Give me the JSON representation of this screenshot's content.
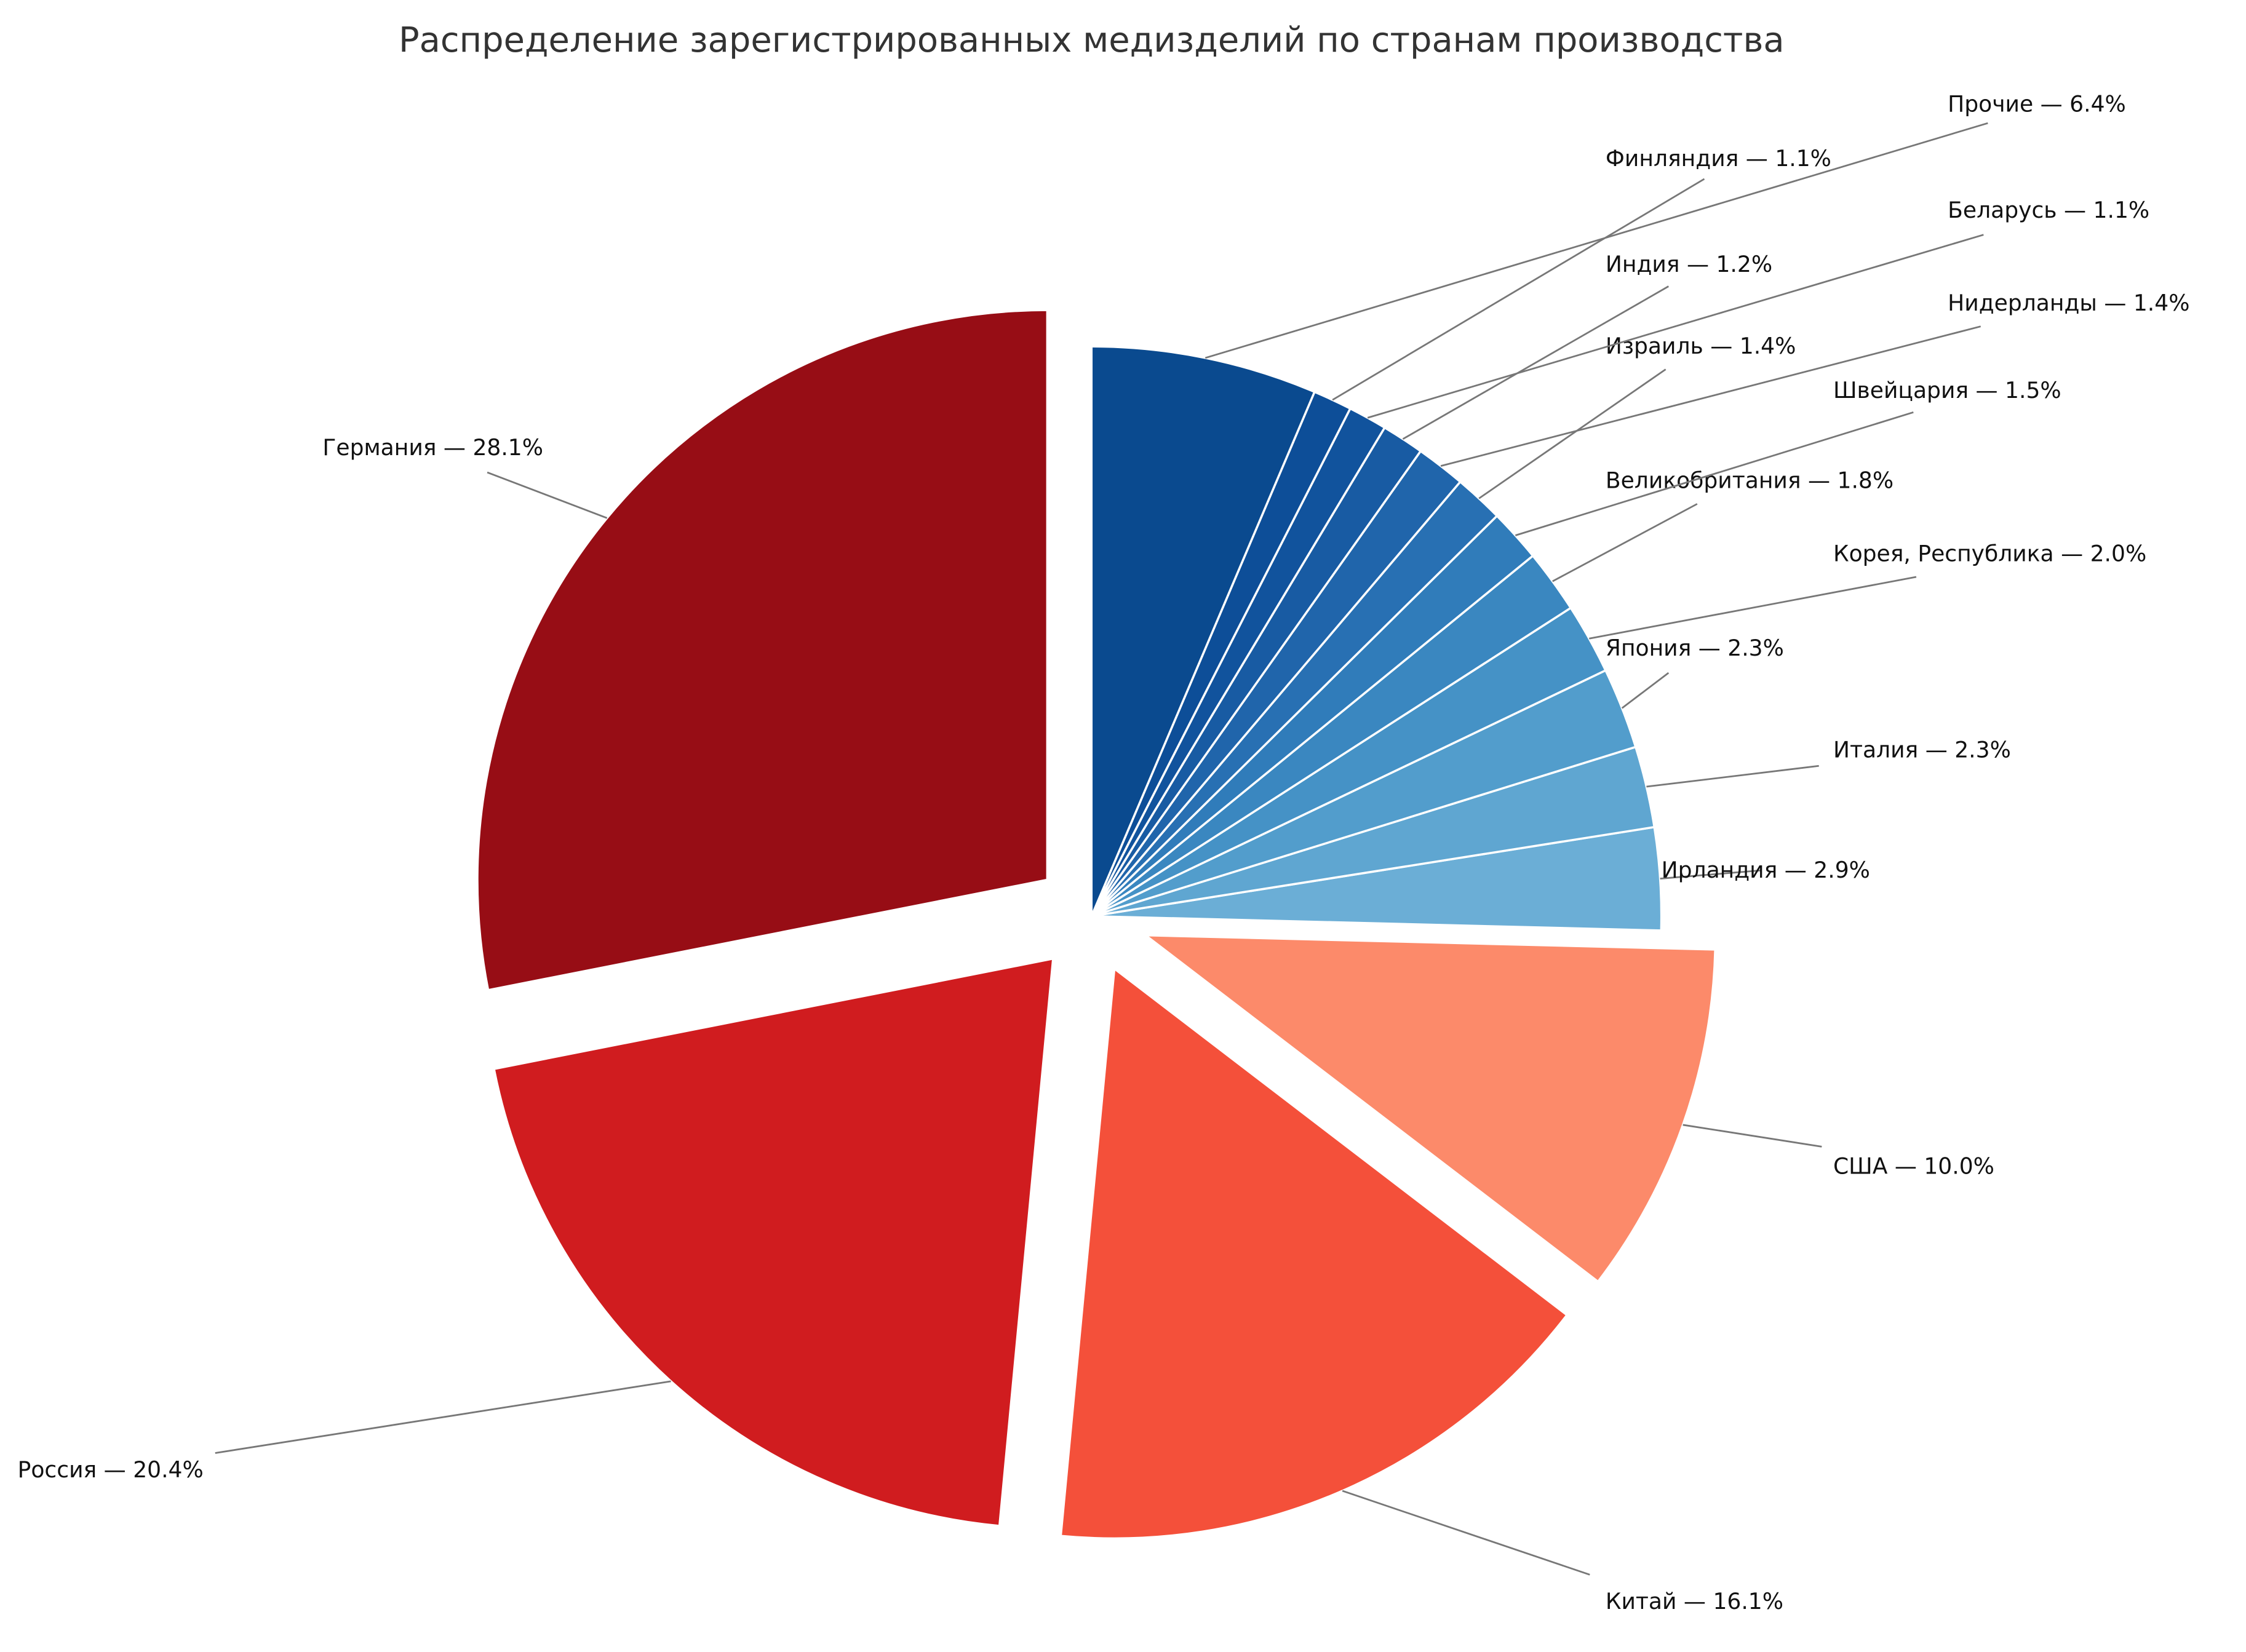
{
  "chart_data": {
    "type": "pie",
    "title": "Распределение зарегистрированных медизделий по странам производства",
    "start_angle_deg": 90,
    "direction": "counterclockwise",
    "slices": [
      {
        "label": "Германия",
        "value": 28.1,
        "color": "#970d15",
        "exploded": true
      },
      {
        "label": "Россия",
        "value": 20.4,
        "color": "#d01c1f",
        "exploded": true
      },
      {
        "label": "Китай",
        "value": 16.1,
        "color": "#f4503a",
        "exploded": true
      },
      {
        "label": "США",
        "value": 10.0,
        "color": "#fc8a6a",
        "exploded": true
      },
      {
        "label": "Ирландия",
        "value": 2.9,
        "color": "#6baed6",
        "exploded": false
      },
      {
        "label": "Италия",
        "value": 2.3,
        "color": "#5fa6d1",
        "exploded": false
      },
      {
        "label": "Япония",
        "value": 2.3,
        "color": "#529dcc",
        "exploded": false
      },
      {
        "label": "Корея, Республика",
        "value": 2.0,
        "color": "#4592c6",
        "exploded": false
      },
      {
        "label": "Великобритания",
        "value": 1.8,
        "color": "#3a87c0",
        "exploded": false
      },
      {
        "label": "Швейцария",
        "value": 1.5,
        "color": "#307cba",
        "exploded": false
      },
      {
        "label": "Израиль",
        "value": 1.4,
        "color": "#2870b3",
        "exploded": false
      },
      {
        "label": "Нидерланды",
        "value": 1.4,
        "color": "#2065ab",
        "exploded": false
      },
      {
        "label": "Индия",
        "value": 1.2,
        "color": "#185ba3",
        "exploded": false
      },
      {
        "label": "Беларусь",
        "value": 1.1,
        "color": "#11539d",
        "exploded": false
      },
      {
        "label": "Финляндия",
        "value": 1.1,
        "color": "#0d4e98",
        "exploded": false
      },
      {
        "label": "Прочие",
        "value": 6.4,
        "color": "#0a4a8f",
        "exploded": false
      }
    ],
    "label_format": "{label} — {value}%"
  }
}
